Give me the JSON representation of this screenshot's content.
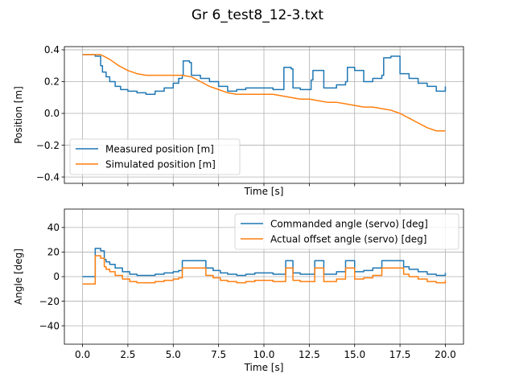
{
  "figure_title": "Gr 6_test8_12-3.txt",
  "chart_data": [
    {
      "type": "line",
      "title": "",
      "xlabel": "Time [s]",
      "ylabel": "Position [m]",
      "xlim": [
        -1.0,
        21.0
      ],
      "ylim": [
        -0.44,
        0.42
      ],
      "xticks": [
        0,
        2.5,
        5,
        7.5,
        10,
        12.5,
        15,
        17.5,
        20
      ],
      "xtick_labels_visible": false,
      "yticks": [
        -0.4,
        -0.2,
        0.0,
        0.2,
        0.4
      ],
      "ytick_labels": [
        "−0.4",
        "−0.2",
        "0.0",
        "0.2",
        "0.4"
      ],
      "grid": true,
      "legend_position": "lower-left",
      "series": [
        {
          "name": "Measured position [m]",
          "color": "#1f77b4",
          "step": true,
          "x": [
            0,
            0.7,
            1.0,
            1.1,
            1.3,
            1.5,
            1.8,
            2.1,
            2.5,
            3.0,
            3.5,
            4.0,
            4.5,
            5.0,
            5.3,
            5.5,
            5.55,
            5.9,
            6.0,
            6.5,
            7.0,
            7.5,
            8.0,
            8.5,
            9.0,
            9.5,
            10.0,
            10.5,
            10.9,
            11.1,
            11.5,
            11.6,
            12.0,
            12.5,
            12.6,
            12.7,
            13.0,
            13.3,
            13.5,
            14.0,
            14.5,
            14.6,
            15.0,
            15.5,
            16.0,
            16.5,
            16.6,
            17.0,
            17.5,
            18.0,
            18.5,
            19.0,
            19.5,
            20.0
          ],
          "y": [
            0.37,
            0.36,
            0.3,
            0.26,
            0.23,
            0.2,
            0.17,
            0.15,
            0.14,
            0.13,
            0.12,
            0.14,
            0.16,
            0.19,
            0.22,
            0.24,
            0.33,
            0.32,
            0.24,
            0.22,
            0.2,
            0.17,
            0.14,
            0.15,
            0.16,
            0.16,
            0.16,
            0.15,
            0.15,
            0.29,
            0.28,
            0.16,
            0.15,
            0.15,
            0.21,
            0.27,
            0.27,
            0.16,
            0.16,
            0.18,
            0.2,
            0.29,
            0.27,
            0.2,
            0.22,
            0.24,
            0.35,
            0.36,
            0.25,
            0.22,
            0.19,
            0.17,
            0.14,
            0.17
          ]
        },
        {
          "name": "Simulated position [m]",
          "color": "#ff7f0e",
          "step": false,
          "x": [
            0,
            0.5,
            1.0,
            1.5,
            2.0,
            2.5,
            3.0,
            3.5,
            4.0,
            4.5,
            5.0,
            5.5,
            6.0,
            6.5,
            7.0,
            7.5,
            8.0,
            8.5,
            9.0,
            9.5,
            10.0,
            10.5,
            11.0,
            11.5,
            12.0,
            12.5,
            13.0,
            13.5,
            14.0,
            14.5,
            15.0,
            15.5,
            16.0,
            16.5,
            17.0,
            17.5,
            18.0,
            18.5,
            19.0,
            19.5,
            20.0
          ],
          "y": [
            0.37,
            0.37,
            0.37,
            0.34,
            0.3,
            0.27,
            0.25,
            0.24,
            0.24,
            0.24,
            0.24,
            0.24,
            0.23,
            0.2,
            0.17,
            0.15,
            0.13,
            0.12,
            0.12,
            0.12,
            0.12,
            0.12,
            0.11,
            0.1,
            0.09,
            0.09,
            0.08,
            0.07,
            0.07,
            0.06,
            0.05,
            0.04,
            0.04,
            0.03,
            0.02,
            0.0,
            -0.03,
            -0.06,
            -0.09,
            -0.11,
            -0.11
          ]
        }
      ]
    },
    {
      "type": "line",
      "title": "",
      "xlabel": "Time [s]",
      "ylabel": "Angle [deg]",
      "xlim": [
        -1.0,
        21.0
      ],
      "ylim": [
        -55,
        55
      ],
      "xticks": [
        0,
        2.5,
        5,
        7.5,
        10,
        12.5,
        15,
        17.5,
        20
      ],
      "xtick_labels": [
        "0.0",
        "2.5",
        "5.0",
        "7.5",
        "10.0",
        "12.5",
        "15.0",
        "17.5",
        "20.0"
      ],
      "yticks": [
        -40,
        -20,
        0,
        20,
        40
      ],
      "ytick_labels": [
        "−40",
        "−20",
        "0",
        "20",
        "40"
      ],
      "grid": true,
      "legend_position": "upper-right",
      "series": [
        {
          "name": "Commanded angle (servo) [deg]",
          "color": "#1f77b4",
          "step": true,
          "x": [
            0,
            0.7,
            1.0,
            1.2,
            1.3,
            1.5,
            1.8,
            2.2,
            2.6,
            3.0,
            3.5,
            4.0,
            4.5,
            5.0,
            5.3,
            5.5,
            6.0,
            6.5,
            6.8,
            7.2,
            7.6,
            8.0,
            8.5,
            9.0,
            9.5,
            10.0,
            10.5,
            11.0,
            11.2,
            11.6,
            12.0,
            12.5,
            12.8,
            13.3,
            13.5,
            14.0,
            14.5,
            15.0,
            15.5,
            16.0,
            16.5,
            17.0,
            17.5,
            17.7,
            18.0,
            18.5,
            19.0,
            19.5,
            20.0
          ],
          "y": [
            0,
            23,
            21,
            14,
            12,
            10,
            7,
            4,
            2,
            1,
            1,
            2,
            3,
            4,
            5,
            13,
            13,
            13,
            7,
            5,
            3,
            2,
            1,
            2,
            3,
            3,
            2,
            2,
            13,
            3,
            2,
            2,
            13,
            2,
            2,
            4,
            13,
            4,
            5,
            7,
            13,
            13,
            13,
            8,
            6,
            4,
            2,
            1,
            3
          ]
        },
        {
          "name": "Actual offset angle (servo) [deg]",
          "color": "#ff7f0e",
          "step": true,
          "x": [
            0,
            0.7,
            1.0,
            1.2,
            1.3,
            1.5,
            1.8,
            2.2,
            2.6,
            3.0,
            3.5,
            4.0,
            4.5,
            5.0,
            5.3,
            5.5,
            6.0,
            6.5,
            6.8,
            7.2,
            7.6,
            8.0,
            8.5,
            9.0,
            9.5,
            10.0,
            10.5,
            11.0,
            11.2,
            11.6,
            12.0,
            12.5,
            12.8,
            13.3,
            13.5,
            14.0,
            14.5,
            15.0,
            15.5,
            16.0,
            16.5,
            17.0,
            17.5,
            17.7,
            18.0,
            18.5,
            19.0,
            19.5,
            20.0
          ],
          "y": [
            -6,
            17,
            15,
            8,
            6,
            4,
            1,
            -2,
            -4,
            -5,
            -5,
            -4,
            -3,
            -2,
            -1,
            7,
            7,
            7,
            1,
            -1,
            -3,
            -4,
            -5,
            -4,
            -3,
            -3,
            -4,
            -4,
            7,
            -3,
            -4,
            -4,
            7,
            -4,
            -4,
            -2,
            7,
            -2,
            -1,
            1,
            7,
            7,
            7,
            2,
            0,
            -2,
            -4,
            -5,
            -3
          ]
        }
      ]
    }
  ]
}
